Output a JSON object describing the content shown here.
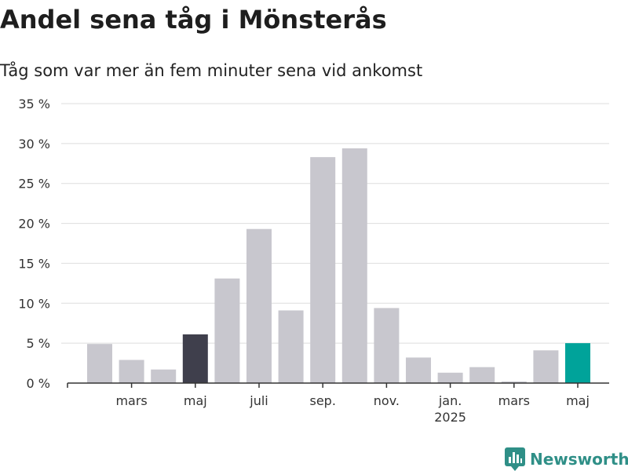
{
  "header": {
    "title": "Andel sena tåg i Mönsterås",
    "subtitle": "Tåg som var mer än fem minuter sena vid ankomst"
  },
  "brand": {
    "name": "Newsworthy",
    "color": "#2f8f87",
    "icon": "newsworthy-logo-icon"
  },
  "colors": {
    "bar_default": "#c8c7ce",
    "bar_highlight": "#3f3f4c",
    "bar_latest": "#00a39a",
    "grid": "#dedede",
    "axis": "#333333"
  },
  "chart_data": {
    "type": "bar",
    "title": "Andel sena tåg i Mönsterås",
    "subtitle": "Tåg som var mer än fem minuter sena vid ankomst",
    "categories": [
      "2024-02",
      "2024-03",
      "2024-04",
      "2024-05",
      "2024-06",
      "2024-07",
      "2024-08",
      "2024-09",
      "2024-10",
      "2024-11",
      "2024-12",
      "2025-01",
      "2025-02",
      "2025-03",
      "2025-04",
      "2025-05"
    ],
    "values": [
      4.9,
      2.9,
      1.7,
      6.1,
      13.1,
      19.3,
      9.1,
      28.3,
      29.4,
      9.4,
      3.2,
      1.3,
      2.0,
      0.2,
      4.1,
      5.0
    ],
    "highlight": {
      "2024-05": "bar_highlight",
      "2025-05": "bar_latest"
    },
    "ylim": [
      0,
      35
    ],
    "yticks": [
      0,
      5,
      10,
      15,
      20,
      25,
      30,
      35
    ],
    "ytick_labels": [
      "0 %",
      "5 %",
      "10 %",
      "15 %",
      "20 %",
      "25 %",
      "30 %",
      "35 %"
    ],
    "xtick_labels": [
      {
        "category": "2024-03",
        "label": "mars"
      },
      {
        "category": "2024-05",
        "label": "maj"
      },
      {
        "category": "2024-07",
        "label": "juli"
      },
      {
        "category": "2024-09",
        "label": "sep."
      },
      {
        "category": "2024-11",
        "label": "nov."
      },
      {
        "category": "2025-01",
        "label": "jan.",
        "sublabel": "2025"
      },
      {
        "category": "2025-03",
        "label": "mars"
      },
      {
        "category": "2025-05",
        "label": "maj"
      }
    ],
    "grid": true,
    "xlabel": "",
    "ylabel": ""
  }
}
